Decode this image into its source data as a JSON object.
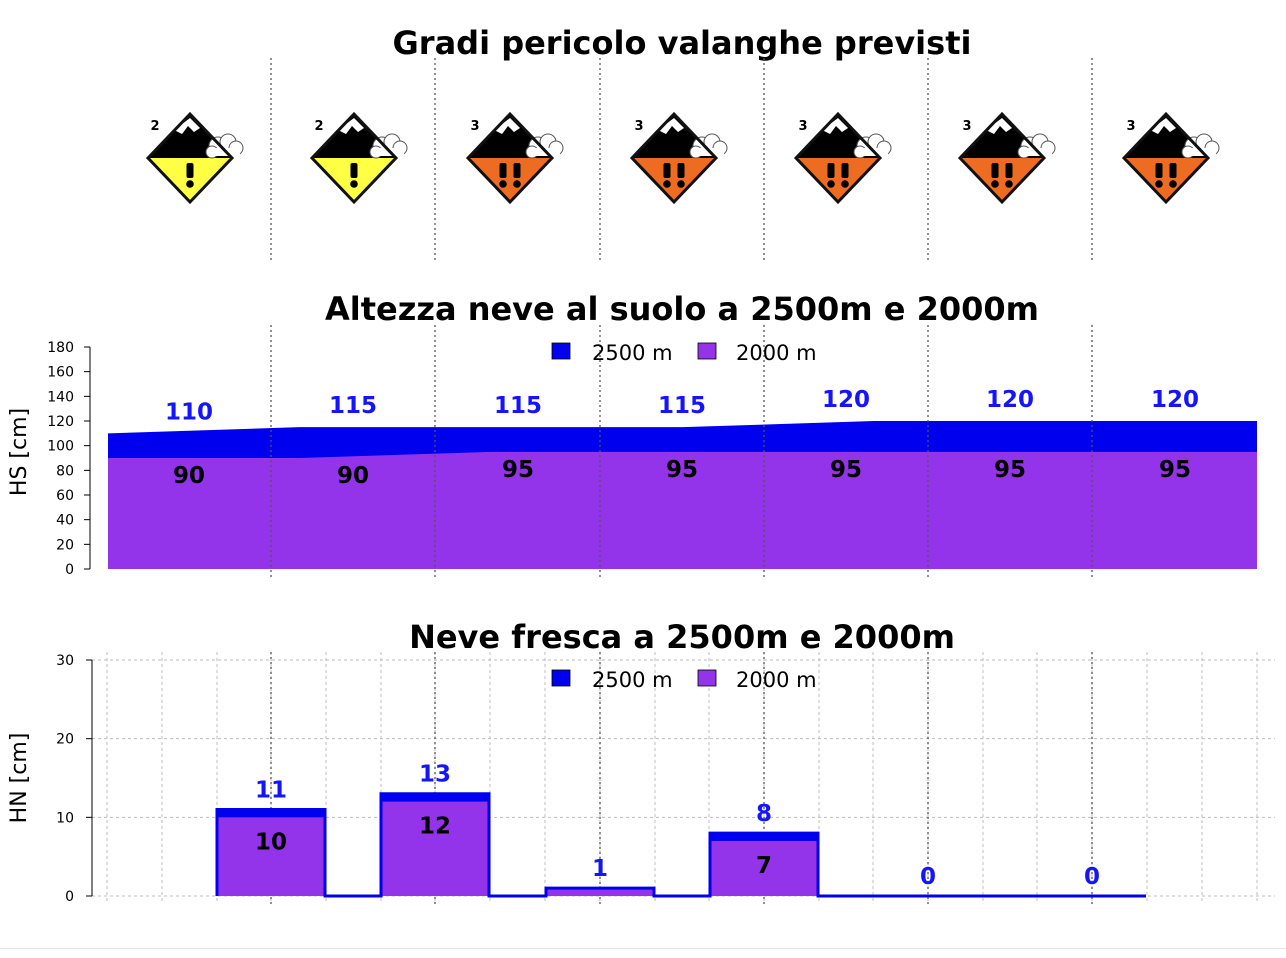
{
  "colors": {
    "hs_2500": "#0000ee",
    "hs_2000": "#9333ea",
    "label_2500": "#1414ff",
    "label_2000": "#000000",
    "danger_2": "#ffff44",
    "danger_3": "#ee6c22",
    "grid": "#bdbdbd",
    "day_sep": "#555555"
  },
  "chart_data": [
    {
      "id": "danger",
      "type": "table",
      "title": "Gradi pericolo valanghe previsti",
      "levels": [
        2,
        2,
        3,
        3,
        3,
        3,
        3
      ],
      "icons": [
        "avalanche-danger-2-icon",
        "avalanche-danger-2-icon",
        "avalanche-danger-3-icon",
        "avalanche-danger-3-icon",
        "avalanche-danger-3-icon",
        "avalanche-danger-3-icon",
        "avalanche-danger-3-icon"
      ]
    },
    {
      "id": "hs",
      "type": "area",
      "title": "Altezza neve al suolo a 2500m e 2000m",
      "ylabel": "HS [cm]",
      "ylim": [
        0,
        180
      ],
      "yticks": [
        "0",
        "20",
        "40",
        "60",
        "80",
        "100",
        "120",
        "140",
        "160",
        "180"
      ],
      "legend": {
        "placement": "top-center",
        "entries": [
          "2500 m",
          "2000 m"
        ]
      },
      "series": [
        {
          "name": "2500 m",
          "values": [
            110,
            115,
            115,
            115,
            120,
            120,
            120
          ],
          "labels": [
            "110",
            "115",
            "115",
            "115",
            "120",
            "120",
            "120"
          ]
        },
        {
          "name": "2000 m",
          "values": [
            90,
            90,
            95,
            95,
            95,
            95,
            95
          ],
          "labels": [
            "90",
            "90",
            "95",
            "95",
            "95",
            "95",
            "95"
          ]
        }
      ]
    },
    {
      "id": "hn",
      "type": "bar",
      "title": "Neve fresca a 2500m e 2000m",
      "ylabel": "HN [cm]",
      "ylim": [
        0,
        30
      ],
      "yticks": [
        "0",
        "10",
        "20",
        "30"
      ],
      "grid": true,
      "legend": {
        "placement": "top-center",
        "entries": [
          "2500 m",
          "2000 m"
        ]
      },
      "series": [
        {
          "name": "2500 m",
          "values": [
            11,
            13,
            1,
            8,
            0,
            0
          ],
          "labels": [
            "11",
            "13",
            "1",
            "8",
            "0",
            "0"
          ]
        },
        {
          "name": "2000 m",
          "values": [
            10,
            12,
            1,
            7,
            0,
            0
          ],
          "labels": [
            "10",
            "12",
            "",
            "7",
            "",
            ""
          ]
        }
      ]
    }
  ]
}
